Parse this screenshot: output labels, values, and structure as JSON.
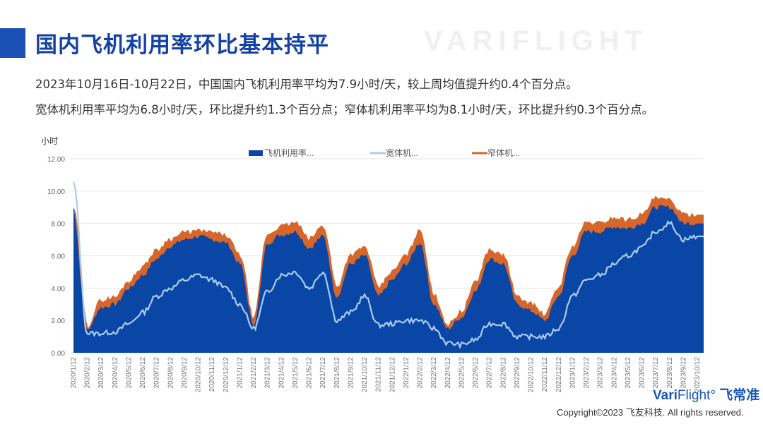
{
  "header": {
    "title": "国内飞机利用率环比基本持平"
  },
  "summary": [
    "2023年10月16日-10月22日，中国国内飞机利用率平均为7.9小时/天，较上周均值提升约0.4个百分点。",
    "宽体机利用率平均为6.8小时/天，环比提升约1.3个百分点；窄体机利用率平均为8.1小时/天，环比提升约0.3个百分点。"
  ],
  "watermark": "VARIFLIGHT",
  "footer": {
    "logo_a": "Vari",
    "logo_b": "Flight°",
    "logo_c": " 飞常准",
    "copyright": "Copyright©2023 飞友科技. All rights reserved."
  },
  "colors": {
    "total": "#0a46a6",
    "wide": "#a8cdf0",
    "narrow": "#d7662a",
    "accent": "#1a4fb3"
  },
  "chart_data": {
    "type": "area",
    "ylabel": "小时",
    "ylim": [
      0,
      12
    ],
    "yticks": [
      "0.00",
      "2.00",
      "4.00",
      "6.00",
      "8.00",
      "10.00",
      "12.00"
    ],
    "legend_position": "top",
    "categories": [
      "2020/1/12",
      "2020/2/12",
      "2020/3/12",
      "2020/4/12",
      "2020/5/12",
      "2020/6/12",
      "2020/7/12",
      "2020/8/12",
      "2020/9/12",
      "2020/10/12",
      "2020/11/12",
      "2020/12/12",
      "2021/1/12",
      "2021/2/12",
      "2021/3/12",
      "2021/4/12",
      "2021/5/12",
      "2021/6/12",
      "2021/7/12",
      "2021/8/12",
      "2021/9/12",
      "2021/10/12",
      "2021/11/12",
      "2021/12/12",
      "2022/1/12",
      "2022/2/12",
      "2022/3/12",
      "2022/4/12",
      "2022/5/12",
      "2022/6/12",
      "2022/7/12",
      "2022/8/12",
      "2022/9/12",
      "2022/10/12",
      "2022/11/12",
      "2022/12/12",
      "2023/1/12",
      "2023/2/12",
      "2023/3/12",
      "2023/4/12",
      "2023/5/12",
      "2023/6/12",
      "2023/7/12",
      "2023/8/12",
      "2023/9/12",
      "2023/10/12"
    ],
    "series": [
      {
        "name": "飞机利用率...",
        "key": "total",
        "values": [
          9.0,
          1.5,
          2.8,
          3.0,
          4.0,
          4.8,
          5.8,
          6.6,
          7.0,
          7.2,
          7.0,
          6.8,
          5.5,
          1.8,
          6.8,
          7.3,
          7.5,
          6.5,
          7.2,
          3.5,
          5.5,
          6.0,
          3.5,
          4.5,
          5.5,
          6.8,
          3.0,
          1.5,
          2.2,
          3.8,
          5.8,
          5.5,
          3.0,
          2.6,
          2.0,
          3.5,
          6.0,
          7.5,
          7.5,
          7.8,
          7.7,
          8.0,
          9.0,
          9.0,
          8.0,
          8.0
        ]
      },
      {
        "name": "宽体机...",
        "key": "wide",
        "values": [
          10.5,
          1.2,
          1.2,
          1.3,
          1.8,
          2.5,
          3.5,
          4.0,
          4.5,
          4.8,
          4.5,
          4.0,
          3.0,
          1.5,
          3.8,
          4.8,
          5.0,
          4.0,
          5.0,
          2.0,
          2.5,
          3.5,
          1.7,
          1.8,
          2.0,
          2.0,
          1.5,
          0.6,
          0.5,
          0.8,
          1.8,
          1.8,
          1.0,
          1.0,
          1.0,
          1.5,
          3.5,
          4.5,
          4.8,
          5.5,
          6.0,
          6.5,
          7.5,
          8.0,
          7.0,
          7.2
        ]
      },
      {
        "name": "窄体机...",
        "key": "narrow",
        "values": [
          8.8,
          1.6,
          3.2,
          3.4,
          4.4,
          5.3,
          6.3,
          7.0,
          7.4,
          7.5,
          7.4,
          7.2,
          6.0,
          2.0,
          7.3,
          7.8,
          8.0,
          7.0,
          7.8,
          4.0,
          6.0,
          6.5,
          4.0,
          5.0,
          6.0,
          7.5,
          3.5,
          1.7,
          2.5,
          4.3,
          6.3,
          6.0,
          3.4,
          3.0,
          2.3,
          4.0,
          6.5,
          8.0,
          8.0,
          8.3,
          8.2,
          8.5,
          9.5,
          9.4,
          8.5,
          8.5
        ]
      }
    ]
  }
}
